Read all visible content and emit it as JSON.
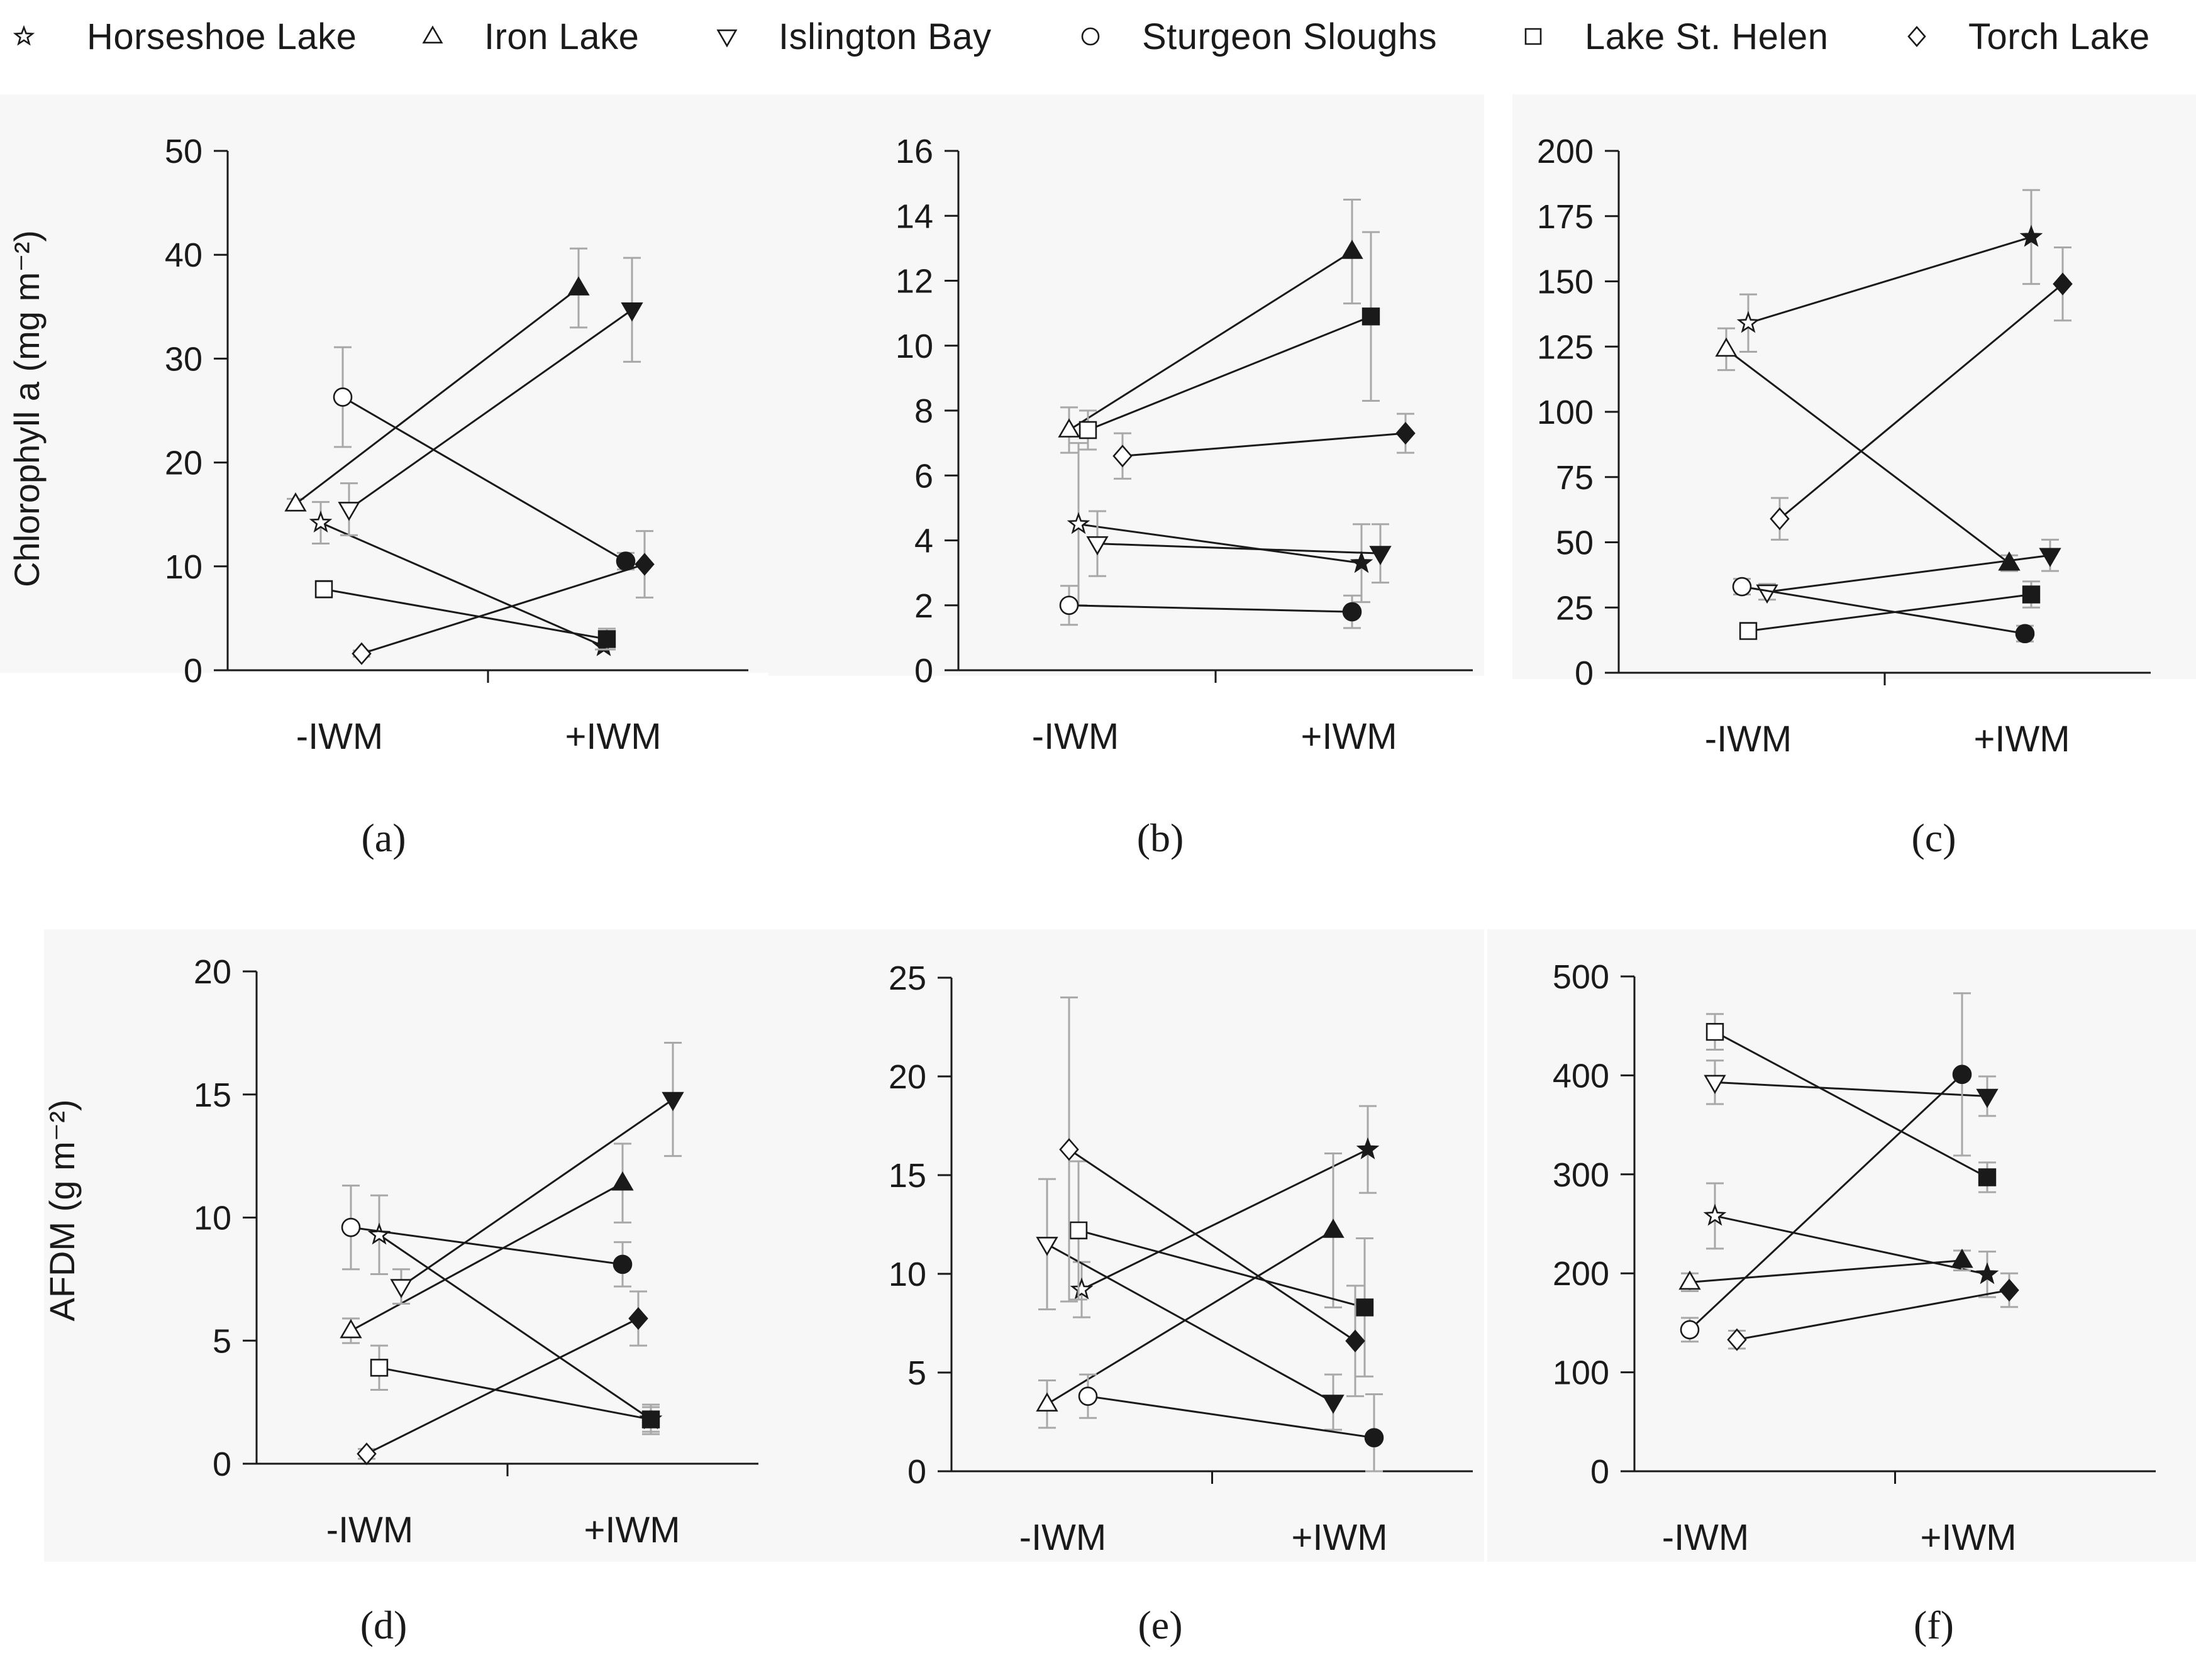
{
  "legend": {
    "items": [
      {
        "label": "Horseshoe Lake",
        "marker": "star"
      },
      {
        "label": "Iron Lake",
        "marker": "triangle-up"
      },
      {
        "label": "Islington Bay",
        "marker": "triangle-down"
      },
      {
        "label": "Sturgeon Sloughs",
        "marker": "circle"
      },
      {
        "label": "Lake St. Helen",
        "marker": "square"
      },
      {
        "label": "Torch Lake",
        "marker": "diamond"
      }
    ]
  },
  "colors": {
    "ink": "#1a1a1a",
    "error_bar": "#a8a8a8",
    "panel_bg": "#f7f7f7"
  },
  "chart_data": [
    {
      "panel": "a",
      "caption": "(a)",
      "type": "line",
      "ylabel": "Chlorophyll a (mg m⁻²)",
      "ylim": [
        0,
        50
      ],
      "yticks": [
        "0",
        "10",
        "20",
        "30",
        "40",
        "50"
      ],
      "categories": [
        "-IWM",
        "+IWM"
      ],
      "series": [
        {
          "name": "Horseshoe Lake",
          "values": [
            14.2,
            2.3
          ],
          "errors": [
            2.0,
            0.3
          ]
        },
        {
          "name": "Iron Lake",
          "values": [
            16.0,
            36.8
          ],
          "errors": [
            0.5,
            3.8
          ]
        },
        {
          "name": "Islington Bay",
          "values": [
            15.5,
            34.7
          ],
          "errors": [
            2.5,
            5.0
          ]
        },
        {
          "name": "Sturgeon Sloughs",
          "values": [
            26.3,
            10.5
          ],
          "errors": [
            4.8,
            0.8
          ]
        },
        {
          "name": "Lake St. Helen",
          "values": [
            7.8,
            3.0
          ],
          "errors": [
            0.8,
            1.0
          ]
        },
        {
          "name": "Torch Lake",
          "values": [
            1.6,
            10.2
          ],
          "errors": [
            0.3,
            3.2
          ]
        }
      ]
    },
    {
      "panel": "b",
      "caption": "(b)",
      "type": "line",
      "ylabel": "",
      "ylim": [
        0,
        16
      ],
      "yticks": [
        "0",
        "2",
        "4",
        "6",
        "8",
        "10",
        "12",
        "14",
        "16"
      ],
      "categories": [
        "-IWM",
        "+IWM"
      ],
      "series": [
        {
          "name": "Horseshoe Lake",
          "values": [
            4.5,
            3.3
          ],
          "errors": [
            2.5,
            1.2
          ]
        },
        {
          "name": "Iron Lake",
          "values": [
            7.4,
            12.9
          ],
          "errors": [
            0.7,
            1.6
          ]
        },
        {
          "name": "Islington Bay",
          "values": [
            3.9,
            3.6
          ],
          "errors": [
            1.0,
            0.9
          ]
        },
        {
          "name": "Sturgeon Sloughs",
          "values": [
            2.0,
            1.8
          ],
          "errors": [
            0.6,
            0.5
          ]
        },
        {
          "name": "Lake St. Helen",
          "values": [
            7.4,
            10.9
          ],
          "errors": [
            0.6,
            2.6
          ]
        },
        {
          "name": "Torch Lake",
          "values": [
            6.6,
            7.3
          ],
          "errors": [
            0.7,
            0.6
          ]
        }
      ]
    },
    {
      "panel": "c",
      "caption": "(c)",
      "type": "line",
      "ylabel": "",
      "ylim": [
        0,
        200
      ],
      "yticks": [
        "0",
        "25",
        "50",
        "75",
        "100",
        "125",
        "150",
        "175",
        "200"
      ],
      "categories": [
        "-IWM",
        "+IWM"
      ],
      "series": [
        {
          "name": "Horseshoe Lake",
          "values": [
            134,
            167
          ],
          "errors": [
            11,
            18
          ]
        },
        {
          "name": "Iron Lake",
          "values": [
            124,
            42
          ],
          "errors": [
            8,
            3
          ]
        },
        {
          "name": "Islington Bay",
          "values": [
            31,
            45
          ],
          "errors": [
            3,
            6
          ]
        },
        {
          "name": "Sturgeon Sloughs",
          "values": [
            33,
            15
          ],
          "errors": [
            3,
            3
          ]
        },
        {
          "name": "Lake St. Helen",
          "values": [
            16,
            30
          ],
          "errors": [
            2,
            5
          ]
        },
        {
          "name": "Torch Lake",
          "values": [
            59,
            149
          ],
          "errors": [
            8,
            14
          ]
        }
      ]
    },
    {
      "panel": "d",
      "caption": "(d)",
      "type": "line",
      "ylabel": "AFDM (g m⁻²)",
      "ylim": [
        0,
        20
      ],
      "yticks": [
        "0",
        "5",
        "10",
        "15",
        "20"
      ],
      "categories": [
        "-IWM",
        "+IWM"
      ],
      "series": [
        {
          "name": "Horseshoe Lake",
          "values": [
            9.3,
            1.8
          ],
          "errors": [
            1.6,
            0.5
          ]
        },
        {
          "name": "Iron Lake",
          "values": [
            5.4,
            11.4
          ],
          "errors": [
            0.5,
            1.6
          ]
        },
        {
          "name": "Islington Bay",
          "values": [
            7.2,
            14.8
          ],
          "errors": [
            0.7,
            2.3
          ]
        },
        {
          "name": "Sturgeon Sloughs",
          "values": [
            9.6,
            8.1
          ],
          "errors": [
            1.7,
            0.9
          ]
        },
        {
          "name": "Lake St. Helen",
          "values": [
            3.9,
            1.8
          ],
          "errors": [
            0.9,
            0.6
          ]
        },
        {
          "name": "Torch Lake",
          "values": [
            0.4,
            5.9
          ],
          "errors": [
            0.2,
            1.1
          ]
        }
      ]
    },
    {
      "panel": "e",
      "caption": "(e)",
      "type": "line",
      "ylabel": "",
      "ylim": [
        0,
        25
      ],
      "yticks": [
        "0",
        "5",
        "10",
        "15",
        "20",
        "25"
      ],
      "categories": [
        "-IWM",
        "+IWM"
      ],
      "series": [
        {
          "name": "Horseshoe Lake",
          "values": [
            9.2,
            16.3
          ],
          "errors": [
            1.4,
            2.2
          ]
        },
        {
          "name": "Iron Lake",
          "values": [
            3.4,
            12.2
          ],
          "errors": [
            1.2,
            3.9
          ]
        },
        {
          "name": "Islington Bay",
          "values": [
            11.5,
            3.5
          ],
          "errors": [
            3.3,
            1.4
          ]
        },
        {
          "name": "Sturgeon Sloughs",
          "values": [
            3.8,
            1.7
          ],
          "errors": [
            1.1,
            2.2
          ]
        },
        {
          "name": "Lake St. Helen",
          "values": [
            12.2,
            8.3
          ],
          "errors": [
            3.5,
            3.5
          ]
        },
        {
          "name": "Torch Lake",
          "values": [
            16.3,
            6.6
          ],
          "errors": [
            7.7,
            2.8
          ]
        }
      ]
    },
    {
      "panel": "f",
      "caption": "(f)",
      "type": "line",
      "ylabel": "",
      "ylim": [
        0,
        500
      ],
      "yticks": [
        "0",
        "100",
        "200",
        "300",
        "400",
        "500"
      ],
      "categories": [
        "-IWM",
        "+IWM"
      ],
      "series": [
        {
          "name": "Horseshoe Lake",
          "values": [
            258,
            199
          ],
          "errors": [
            33,
            23
          ]
        },
        {
          "name": "Iron Lake",
          "values": [
            191,
            213
          ],
          "errors": [
            9,
            10
          ]
        },
        {
          "name": "Islington Bay",
          "values": [
            393,
            379
          ],
          "errors": [
            22,
            20
          ]
        },
        {
          "name": "Sturgeon Sloughs",
          "values": [
            143,
            401
          ],
          "errors": [
            12,
            82
          ]
        },
        {
          "name": "Lake St. Helen",
          "values": [
            444,
            297
          ],
          "errors": [
            18,
            15
          ]
        },
        {
          "name": "Torch Lake",
          "values": [
            133,
            183
          ],
          "errors": [
            9,
            17
          ]
        }
      ]
    }
  ]
}
